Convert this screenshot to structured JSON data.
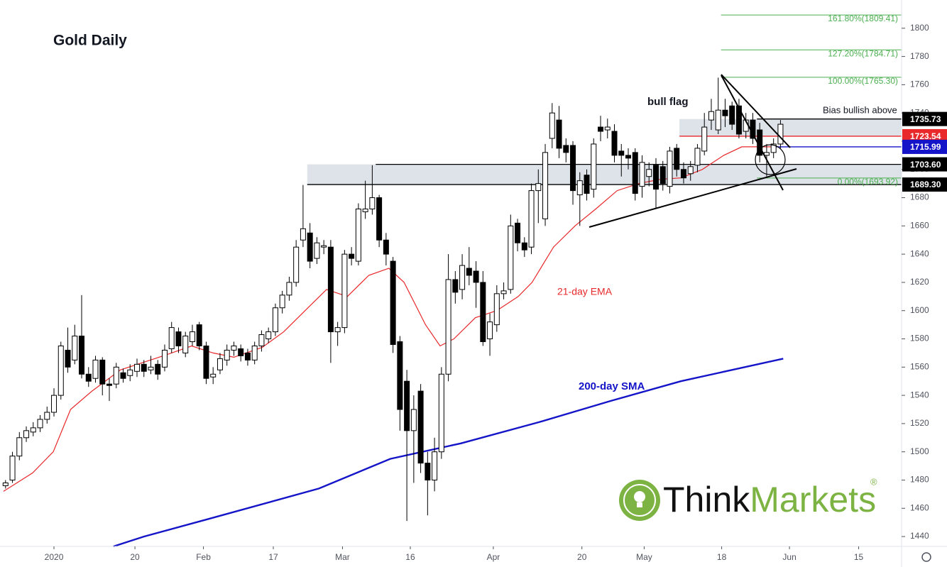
{
  "chart_data": {
    "type": "candlestick",
    "title": "Gold Daily",
    "open": [
      1476,
      1480,
      1497,
      1510,
      1514,
      1517,
      1523,
      1528,
      1540,
      1572,
      1565,
      1582,
      1555,
      1552,
      1565,
      1548,
      1548,
      1556,
      1554,
      1557,
      1562,
      1558,
      1562,
      1560,
      1573,
      1585,
      1570,
      1578,
      1590,
      1575,
      1553,
      1558,
      1565,
      1572,
      1573,
      1570,
      1565,
      1575,
      1580,
      1585,
      1602,
      1611,
      1620,
      1650,
      1655,
      1637,
      1645,
      1645,
      1585,
      1588,
      1640,
      1635,
      1670,
      1672,
      1680,
      1650,
      1635,
      1578,
      1550,
      1515,
      1543,
      1492,
      1480,
      1500,
      1555,
      1622,
      1615,
      1630,
      1628,
      1620,
      1580,
      1590,
      1612,
      1615,
      1662,
      1648,
      1645,
      1685,
      1665,
      1722,
      1735,
      1717,
      1717,
      1682,
      1696,
      1686,
      1730,
      1728,
      1727,
      1713,
      1710,
      1712,
      1688,
      1695,
      1703,
      1702,
      1688,
      1715,
      1700,
      1697,
      1703,
      1713,
      1735,
      1728,
      1742,
      1745,
      1745,
      1727,
      1735,
      1728,
      1710,
      1712,
      1718
    ],
    "high": [
      1480,
      1500,
      1514,
      1518,
      1521,
      1526,
      1532,
      1545,
      1578,
      1588,
      1590,
      1611,
      1560,
      1568,
      1567,
      1552,
      1563,
      1559,
      1562,
      1566,
      1565,
      1568,
      1565,
      1576,
      1592,
      1588,
      1585,
      1590,
      1592,
      1578,
      1560,
      1570,
      1576,
      1578,
      1576,
      1573,
      1578,
      1586,
      1588,
      1605,
      1614,
      1624,
      1650,
      1689,
      1662,
      1652,
      1650,
      1650,
      1592,
      1643,
      1645,
      1676,
      1692,
      1703,
      1682,
      1655,
      1638,
      1582,
      1558,
      1540,
      1548,
      1500,
      1510,
      1560,
      1640,
      1628,
      1640,
      1645,
      1635,
      1628,
      1598,
      1618,
      1620,
      1668,
      1665,
      1652,
      1690,
      1700,
      1718,
      1747,
      1745,
      1722,
      1720,
      1698,
      1700,
      1722,
      1738,
      1736,
      1732,
      1718,
      1715,
      1715,
      1710,
      1705,
      1708,
      1706,
      1716,
      1718,
      1705,
      1706,
      1718,
      1740,
      1750,
      1765,
      1750,
      1748,
      1750,
      1740,
      1740,
      1733,
      1718,
      1722,
      1735
    ],
    "low": [
      1474,
      1478,
      1494,
      1507,
      1511,
      1514,
      1520,
      1525,
      1537,
      1556,
      1562,
      1552,
      1546,
      1549,
      1540,
      1536,
      1545,
      1549,
      1550,
      1553,
      1553,
      1555,
      1551,
      1557,
      1570,
      1570,
      1567,
      1575,
      1572,
      1548,
      1548,
      1555,
      1561,
      1568,
      1564,
      1561,
      1562,
      1571,
      1577,
      1582,
      1598,
      1607,
      1617,
      1645,
      1630,
      1633,
      1640,
      1563,
      1575,
      1584,
      1632,
      1632,
      1665,
      1668,
      1645,
      1632,
      1570,
      1515,
      1451,
      1478,
      1485,
      1455,
      1472,
      1495,
      1550,
      1605,
      1608,
      1618,
      1602,
      1575,
      1568,
      1585,
      1608,
      1612,
      1642,
      1638,
      1640,
      1662,
      1660,
      1715,
      1708,
      1705,
      1675,
      1660,
      1678,
      1680,
      1720,
      1722,
      1705,
      1695,
      1700,
      1678,
      1680,
      1688,
      1672,
      1685,
      1683,
      1695,
      1690,
      1692,
      1698,
      1710,
      1728,
      1725,
      1730,
      1728,
      1722,
      1722,
      1718,
      1705,
      1695,
      1708,
      1715
    ],
    "close": [
      1478,
      1497,
      1510,
      1515,
      1517,
      1523,
      1528,
      1540,
      1575,
      1560,
      1582,
      1555,
      1550,
      1565,
      1548,
      1547,
      1560,
      1552,
      1558,
      1562,
      1557,
      1560,
      1555,
      1572,
      1588,
      1575,
      1582,
      1585,
      1575,
      1552,
      1555,
      1566,
      1572,
      1575,
      1568,
      1565,
      1575,
      1583,
      1585,
      1602,
      1611,
      1620,
      1645,
      1658,
      1635,
      1648,
      1646,
      1585,
      1588,
      1640,
      1637,
      1672,
      1672,
      1680,
      1650,
      1640,
      1576,
      1530,
      1515,
      1530,
      1492,
      1480,
      1500,
      1555,
      1622,
      1613,
      1632,
      1625,
      1620,
      1578,
      1592,
      1612,
      1614,
      1660,
      1648,
      1643,
      1685,
      1690,
      1712,
      1740,
      1715,
      1712,
      1685,
      1692,
      1683,
      1718,
      1727,
      1730,
      1710,
      1710,
      1708,
      1683,
      1705,
      1700,
      1686,
      1690,
      1713,
      1700,
      1694,
      1702,
      1715,
      1730,
      1741,
      1742,
      1738,
      1732,
      1725,
      1735,
      1722,
      1710,
      1712,
      1718,
      1732
    ],
    "xlim": [
      -0.8,
      129.5
    ],
    "xticks": [
      {
        "value": 7,
        "label": "2020"
      },
      {
        "value": 18.7,
        "label": "20"
      },
      {
        "value": 28.6,
        "label": "Feb"
      },
      {
        "value": 38.7,
        "label": "17"
      },
      {
        "value": 48.7,
        "label": "Mar"
      },
      {
        "value": 58.5,
        "label": "16"
      },
      {
        "value": 70.5,
        "label": "Apr"
      },
      {
        "value": 83.3,
        "label": "20"
      },
      {
        "value": 92.3,
        "label": "May"
      },
      {
        "value": 103.5,
        "label": "18"
      },
      {
        "value": 113.3,
        "label": "Jun"
      },
      {
        "value": 123.3,
        "label": "15"
      }
    ],
    "ylim": [
      1433,
      1820
    ],
    "yticks": [
      1440,
      1460,
      1480,
      1500,
      1520,
      1540,
      1560,
      1580,
      1600,
      1620,
      1640,
      1660,
      1680,
      1700,
      1720,
      1740,
      1760,
      1780,
      1800
    ],
    "series": [
      {
        "name": "21-day EMA",
        "color": "#e8282b",
        "x": [
          -0.3,
          3.9,
          6.9,
          9.4,
          12.5,
          16.6,
          22.8,
          26.9,
          30,
          33,
          37.1,
          40.2,
          43.3,
          46.4,
          49.4,
          52.5,
          55.4,
          57.6,
          60.7,
          62.8,
          64.8,
          67.9,
          71,
          74.1,
          76.1,
          79.2,
          82.3,
          85.3,
          88.4,
          91.5,
          94.6,
          97.6,
          100.7,
          103.8,
          106.4,
          108.9,
          111
        ],
        "values": [
          1472,
          1485,
          1500,
          1530,
          1543,
          1558,
          1568,
          1575,
          1570,
          1567,
          1574,
          1585,
          1600,
          1615,
          1610,
          1625,
          1630,
          1620,
          1590,
          1575,
          1580,
          1595,
          1600,
          1610,
          1620,
          1645,
          1660,
          1672,
          1685,
          1690,
          1693,
          1694,
          1700,
          1710,
          1716,
          1716,
          1716
        ]
      },
      {
        "name": "200-day SMA",
        "color": "#1414c8",
        "x": [
          15.6,
          20,
          29,
          45.3,
          55.6,
          65.8,
          77.1,
          87.4,
          97.6,
          112.4
        ],
        "values": [
          1433,
          1440,
          1452,
          1474,
          1495,
          1506,
          1521,
          1536,
          1550,
          1566
        ]
      }
    ],
    "levels": [
      {
        "value": 1735.73,
        "color": "#000000",
        "x_start": 108.6
      },
      {
        "value": 1723.54,
        "color": "#e8282b",
        "x_start": 97.4
      },
      {
        "value": 1715.99,
        "color": "#1414c8",
        "x_start": 111.2
      },
      {
        "value": 1703.6,
        "label": "1703.60",
        "color": "#000000",
        "x_start": 53.5
      },
      {
        "value": 1689.3,
        "label": "1689.30",
        "color": "#000000",
        "x_start": 43.6
      }
    ],
    "fib": [
      {
        "value": 1809.41,
        "label": "161.80%(1809.41)",
        "x_start": 103.4
      },
      {
        "value": 1784.71,
        "label": "127.20%(1784.71)",
        "x_start": 103.4
      },
      {
        "value": 1765.3,
        "label": "100.00%(1765.30)",
        "x_start": 103.4
      },
      {
        "value": 1693.92,
        "label": "0.00%(1693.92)",
        "x_start": 108.6
      }
    ],
    "fib_color": "#4caf50",
    "annotations": {
      "pattern": "bull flag",
      "bias": "Bias bullish above"
    },
    "logo": {
      "think": "Think",
      "markets": "Markets",
      "mark": "®"
    }
  }
}
